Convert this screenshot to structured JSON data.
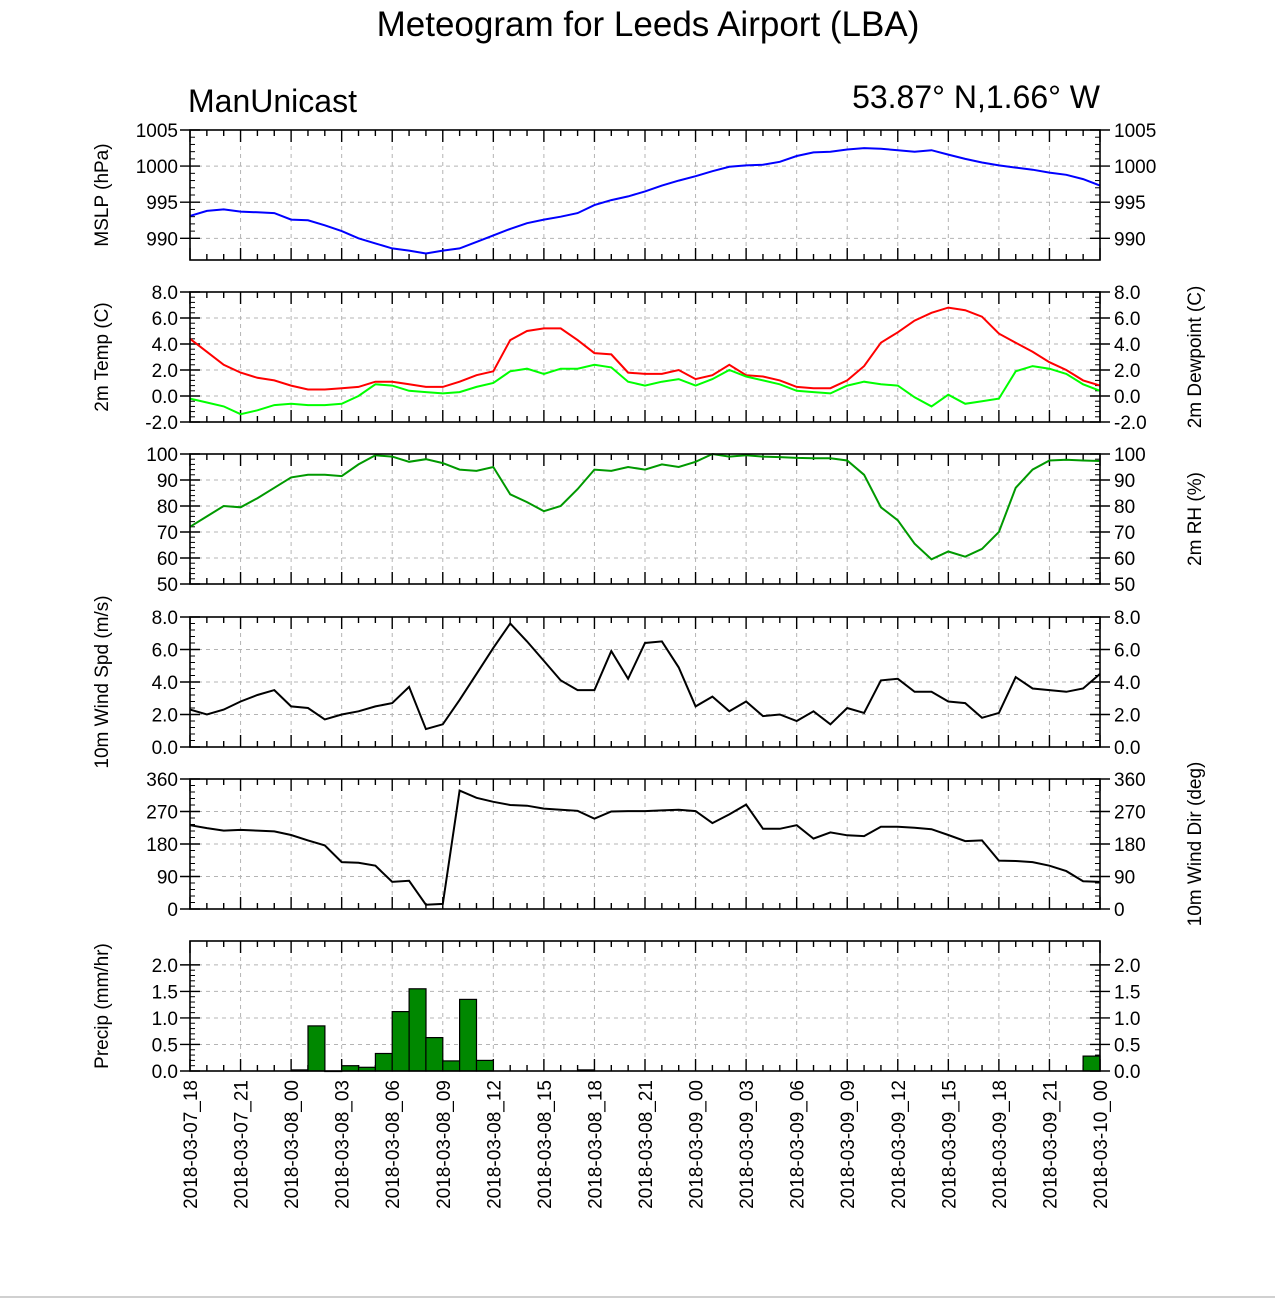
{
  "header": {
    "title": "Meteogram for Leeds Airport (LBA)",
    "left_label": "ManUnicast",
    "right_label": "53.87° N,1.66° W"
  },
  "chart_data": [
    {
      "id": "mslp",
      "type": "line",
      "ylabel_left": "MSLP (hPa)",
      "ylabel_right": "",
      "ylim": [
        987,
        1005
      ],
      "ticks_left": [
        "990",
        "995",
        "1000",
        "1005"
      ],
      "ticks_right": [
        "990",
        "995",
        "1000",
        "1005"
      ],
      "tick_values": [
        990,
        995,
        1000,
        1005
      ],
      "series": [
        {
          "color": "#0000ff",
          "x": [
            0,
            1,
            2,
            3,
            4,
            5,
            6,
            7,
            8,
            9,
            10,
            11,
            12,
            13,
            14,
            15,
            16,
            17,
            18,
            19,
            20,
            21,
            22,
            23,
            24,
            25,
            26,
            27,
            28,
            29,
            30,
            31,
            32,
            33,
            34,
            35,
            36,
            37,
            38,
            39,
            40,
            41,
            42,
            43,
            44,
            45,
            46,
            47,
            48,
            49,
            50,
            51,
            52,
            53,
            54
          ],
          "y": [
            993.1,
            993.8,
            994.0,
            993.7,
            993.6,
            993.5,
            992.6,
            992.5,
            991.8,
            991.0,
            990.0,
            989.3,
            988.6,
            988.3,
            987.9,
            988.3,
            988.6,
            989.5,
            990.4,
            991.3,
            992.1,
            992.6,
            993.0,
            993.5,
            994.6,
            995.3,
            995.8,
            996.5,
            997.3,
            998.0,
            998.6,
            999.3,
            999.9,
            1000.1,
            1000.2,
            1000.6,
            1001.4,
            1001.9,
            1002.0,
            1002.3,
            1002.5,
            1002.4,
            1002.2,
            1002.0,
            1002.2,
            1001.6,
            1001.0,
            1000.5,
            1000.1,
            999.8,
            999.5,
            999.1,
            998.8,
            998.2,
            997.3
          ]
        }
      ]
    },
    {
      "id": "temp",
      "type": "line",
      "ylabel_left": "2m Temp (C)",
      "ylabel_right": "2m Dewpoint (C)",
      "ylim": [
        -2,
        8
      ],
      "ticks_left": [
        "-2.0",
        "0.0",
        "2.0",
        "4.0",
        "6.0",
        "8.0"
      ],
      "ticks_right": [
        "-2.0",
        "0.0",
        "2.0",
        "4.0",
        "6.0",
        "8.0"
      ],
      "tick_values": [
        -2,
        0,
        2,
        4,
        6,
        8
      ],
      "series": [
        {
          "color": "#ff0000",
          "x": [
            0,
            1,
            2,
            3,
            4,
            5,
            6,
            7,
            8,
            9,
            10,
            11,
            12,
            13,
            14,
            15,
            16,
            17,
            18,
            19,
            20,
            21,
            22,
            23,
            24,
            25,
            26,
            27,
            28,
            29,
            30,
            31,
            32,
            33,
            34,
            35,
            36,
            37,
            38,
            39,
            40,
            41,
            42,
            43,
            44,
            45,
            46,
            47,
            48,
            49,
            50,
            51,
            52,
            53,
            54
          ],
          "y": [
            4.4,
            3.4,
            2.4,
            1.8,
            1.4,
            1.2,
            0.8,
            0.5,
            0.5,
            0.6,
            0.7,
            1.1,
            1.1,
            0.9,
            0.7,
            0.7,
            1.1,
            1.6,
            1.9,
            4.3,
            5.0,
            5.2,
            5.2,
            4.3,
            3.3,
            3.2,
            1.8,
            1.7,
            1.7,
            2.0,
            1.3,
            1.6,
            2.4,
            1.6,
            1.5,
            1.2,
            0.7,
            0.6,
            0.6,
            1.2,
            2.3,
            4.1,
            4.9,
            5.8,
            6.4,
            6.8,
            6.6,
            6.1,
            4.8,
            4.1,
            3.4,
            2.6,
            2.0,
            1.2,
            0.8
          ]
        },
        {
          "color": "#00ff00",
          "x": [
            0,
            1,
            2,
            3,
            4,
            5,
            6,
            7,
            8,
            9,
            10,
            11,
            12,
            13,
            14,
            15,
            16,
            17,
            18,
            19,
            20,
            21,
            22,
            23,
            24,
            25,
            26,
            27,
            28,
            29,
            30,
            31,
            32,
            33,
            34,
            35,
            36,
            37,
            38,
            39,
            40,
            41,
            42,
            43,
            44,
            45,
            46,
            47,
            48,
            49,
            50,
            51,
            52,
            53,
            54
          ],
          "y": [
            -0.2,
            -0.5,
            -0.8,
            -1.4,
            -1.1,
            -0.7,
            -0.6,
            -0.7,
            -0.7,
            -0.6,
            0.0,
            0.9,
            0.8,
            0.4,
            0.3,
            0.2,
            0.3,
            0.7,
            1.0,
            1.9,
            2.1,
            1.7,
            2.1,
            2.1,
            2.4,
            2.2,
            1.1,
            0.8,
            1.1,
            1.3,
            0.8,
            1.3,
            2.0,
            1.5,
            1.2,
            0.9,
            0.4,
            0.3,
            0.2,
            0.8,
            1.1,
            0.9,
            0.8,
            -0.1,
            -0.8,
            0.1,
            -0.6,
            -0.4,
            -0.2,
            1.9,
            2.3,
            2.1,
            1.7,
            0.9,
            0.4
          ]
        }
      ]
    },
    {
      "id": "rh",
      "type": "line",
      "ylabel_left": "",
      "ylabel_right": "2m RH (%)",
      "ylim": [
        50,
        100
      ],
      "ticks_left": [
        "50",
        "60",
        "70",
        "80",
        "90",
        "100"
      ],
      "ticks_right": [
        "50",
        "60",
        "70",
        "80",
        "90",
        "100"
      ],
      "tick_values": [
        50,
        60,
        70,
        80,
        90,
        100
      ],
      "series": [
        {
          "color": "#009900",
          "x": [
            0,
            1,
            2,
            3,
            4,
            5,
            6,
            7,
            8,
            9,
            10,
            11,
            12,
            13,
            14,
            15,
            16,
            17,
            18,
            19,
            20,
            21,
            22,
            23,
            24,
            25,
            26,
            27,
            28,
            29,
            30,
            31,
            32,
            33,
            34,
            35,
            36,
            37,
            38,
            39,
            40,
            41,
            42,
            43,
            44,
            45,
            46,
            47,
            48,
            49,
            50,
            51,
            52,
            53,
            54
          ],
          "y": [
            72,
            76,
            80,
            79.5,
            83,
            87,
            91,
            92,
            92,
            91.5,
            96,
            99.5,
            99,
            97,
            98,
            96.5,
            94,
            93.5,
            95,
            84.5,
            81.5,
            78,
            80,
            86.5,
            94,
            93.5,
            95,
            94,
            96,
            95,
            97,
            100,
            99,
            99.5,
            99,
            98.8,
            98.5,
            98.4,
            98.4,
            97.5,
            92,
            79.5,
            74.5,
            65.5,
            59.5,
            62.5,
            60.5,
            63.5,
            70,
            87,
            94,
            97.5,
            97.8,
            97.5,
            97.3
          ]
        }
      ]
    },
    {
      "id": "wspd",
      "type": "line",
      "ylabel_left": "10m Wind Spd (m/s)",
      "ylabel_right": "",
      "ylim": [
        0,
        8
      ],
      "ticks_left": [
        "0.0",
        "2.0",
        "4.0",
        "6.0",
        "8.0"
      ],
      "ticks_right": [
        "0.0",
        "2.0",
        "4.0",
        "6.0",
        "8.0"
      ],
      "tick_values": [
        0,
        2,
        4,
        6,
        8
      ],
      "series": [
        {
          "color": "#000000",
          "x": [
            0,
            1,
            2,
            3,
            4,
            5,
            6,
            7,
            8,
            9,
            10,
            11,
            12,
            13,
            14,
            15,
            16,
            17,
            18,
            19,
            20,
            21,
            22,
            23,
            24,
            25,
            26,
            27,
            28,
            29,
            30,
            31,
            32,
            33,
            34,
            35,
            36,
            37,
            38,
            39,
            40,
            41,
            42,
            43,
            44,
            45,
            46,
            47,
            48,
            49,
            50,
            51,
            52,
            53,
            54
          ],
          "y": [
            2.3,
            2.0,
            2.3,
            2.8,
            3.2,
            3.5,
            2.5,
            2.4,
            1.7,
            2.0,
            2.2,
            2.5,
            2.7,
            3.7,
            1.1,
            1.4,
            2.9,
            4.5,
            6.1,
            7.6,
            6.5,
            5.3,
            4.1,
            3.5,
            3.5,
            5.9,
            4.2,
            6.4,
            6.5,
            4.9,
            2.5,
            3.1,
            2.2,
            2.8,
            1.9,
            2.0,
            1.6,
            2.2,
            1.4,
            2.4,
            2.1,
            4.1,
            4.2,
            3.4,
            3.4,
            2.8,
            2.7,
            1.8,
            2.1,
            4.3,
            3.6,
            3.5,
            3.4,
            3.6,
            4.5
          ]
        }
      ]
    },
    {
      "id": "wdir",
      "type": "line",
      "ylabel_left": "",
      "ylabel_right": "10m Wind Dir (deg)",
      "ylim": [
        0,
        360
      ],
      "ticks_left": [
        "0",
        "90",
        "180",
        "270",
        "360"
      ],
      "ticks_right": [
        "0",
        "90",
        "180",
        "270",
        "360"
      ],
      "tick_values": [
        0,
        90,
        180,
        270,
        360
      ],
      "series": [
        {
          "color": "#000000",
          "x": [
            0,
            1,
            2,
            3,
            4,
            5,
            6,
            7,
            8,
            9,
            10,
            11,
            12,
            13,
            14,
            15,
            16,
            17,
            18,
            19,
            20,
            21,
            22,
            23,
            24,
            25,
            26,
            27,
            28,
            29,
            30,
            31,
            32,
            33,
            34,
            35,
            36,
            37,
            38,
            39,
            40,
            41,
            42,
            43,
            44,
            45,
            46,
            47,
            48,
            49,
            50,
            51,
            52,
            53,
            54
          ],
          "y": [
            232,
            224,
            217,
            219,
            217,
            215,
            205,
            190,
            176,
            130,
            128,
            120,
            75,
            78,
            12,
            14,
            328,
            308,
            297,
            288,
            286,
            278,
            275,
            272,
            250,
            270,
            271,
            271,
            273,
            275,
            271,
            238,
            262,
            289,
            222,
            222,
            232,
            195,
            212,
            204,
            202,
            228,
            228,
            225,
            221,
            205,
            188,
            190,
            134,
            133,
            130,
            120,
            105,
            77,
            75
          ]
        }
      ]
    },
    {
      "id": "precip",
      "type": "bar",
      "ylabel_left": "Precip (mm/hr)",
      "ylabel_right": "",
      "ylim": [
        0,
        2.45
      ],
      "ticks_left": [
        "0.0",
        "0.5",
        "1.0",
        "1.5",
        "2.0"
      ],
      "ticks_right": [
        "0.0",
        "0.5",
        "1.0",
        "1.5",
        "2.0"
      ],
      "tick_values": [
        0,
        0.5,
        1,
        1.5,
        2
      ],
      "bar_color": "#008800",
      "x": [
        7,
        8,
        9,
        10,
        11,
        12,
        13,
        14,
        15,
        16,
        17,
        18,
        24,
        54
      ],
      "values": [
        0.02,
        0.85,
        0.0,
        0.1,
        0.07,
        0.33,
        1.12,
        1.55,
        0.63,
        0.19,
        1.35,
        0.2,
        0.02,
        0.28
      ]
    }
  ],
  "x_axis": {
    "xlim": [
      0,
      54
    ],
    "tick_positions": [
      0,
      3,
      6,
      9,
      12,
      15,
      18,
      21,
      24,
      27,
      30,
      33,
      36,
      39,
      42,
      45,
      48,
      51,
      54
    ],
    "tick_labels": [
      "2018-03-07_18",
      "2018-03-07_21",
      "2018-03-08_00",
      "2018-03-08_03",
      "2018-03-08_06",
      "2018-03-08_09",
      "2018-03-08_12",
      "2018-03-08_15",
      "2018-03-08_18",
      "2018-03-08_21",
      "2018-03-09_00",
      "2018-03-09_03",
      "2018-03-09_06",
      "2018-03-09_09",
      "2018-03-09_12",
      "2018-03-09_15",
      "2018-03-09_18",
      "2018-03-09_21",
      "2018-03-10_00"
    ]
  }
}
